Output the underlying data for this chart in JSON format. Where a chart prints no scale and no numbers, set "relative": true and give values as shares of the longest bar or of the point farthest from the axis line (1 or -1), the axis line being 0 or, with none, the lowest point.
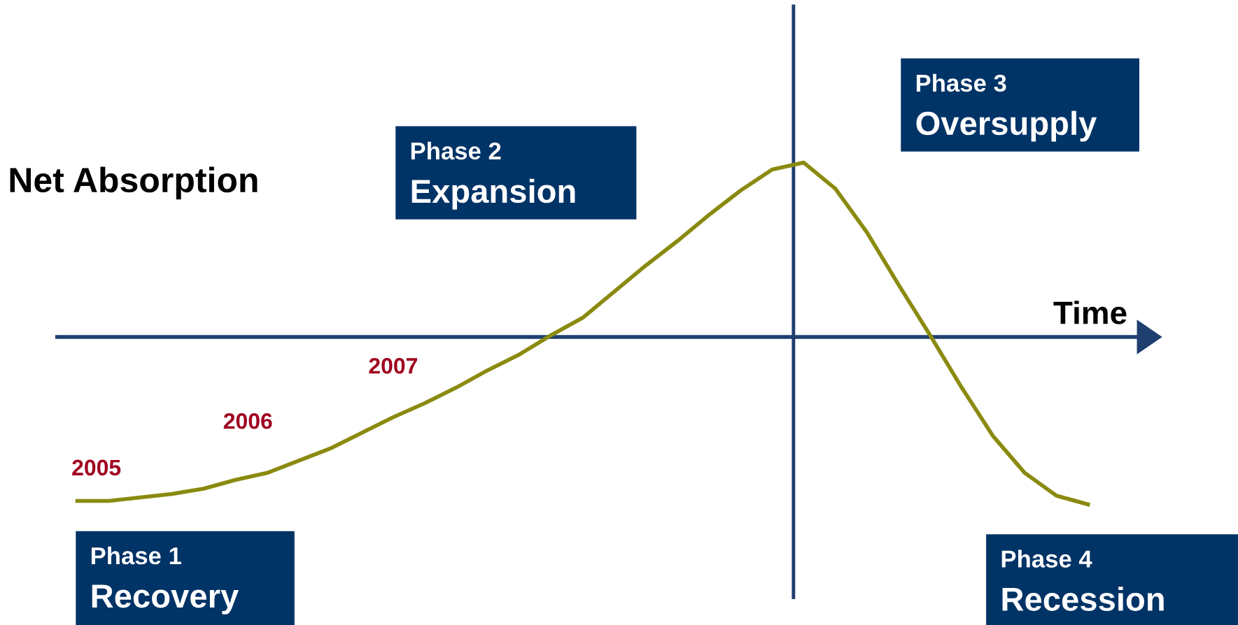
{
  "chart_data": {
    "type": "line",
    "relative": true,
    "ylabel": "Net Absorption",
    "xlabel": "Time",
    "categories": [
      null,
      null,
      null,
      null,
      null,
      null,
      null,
      null,
      null,
      null,
      null,
      null,
      null,
      null,
      null,
      null,
      null,
      null,
      null,
      null,
      null,
      null,
      null,
      null,
      null,
      null,
      null,
      null,
      null,
      null,
      null,
      null,
      null
    ],
    "series": [
      {
        "color": "#8a8a10",
        "values": [
          -0.94,
          -0.94,
          -0.92,
          -0.9,
          -0.87,
          -0.82,
          -0.78,
          -0.71,
          -0.64,
          -0.55,
          -0.46,
          -0.38,
          -0.29,
          -0.19,
          -0.1,
          0.01,
          0.11,
          0.26,
          0.41,
          0.55,
          0.7,
          0.84,
          0.96,
          1.0,
          0.85,
          0.6,
          0.3,
          0.01,
          -0.29,
          -0.57,
          -0.78,
          -0.91,
          -0.96
        ]
      }
    ],
    "ref_lines": [
      {
        "axis": "y",
        "value": 0,
        "color": "#1f3f6f"
      }
    ],
    "marker": "none",
    "line_style": "solid",
    "legend": false,
    "annotations": [
      "Phase 1\nRecovery",
      "Phase 2\nExpansion",
      "Phase 3\nOversupply",
      "Phase 4\nRecession",
      "2005",
      "2006",
      "2007"
    ]
  }
}
